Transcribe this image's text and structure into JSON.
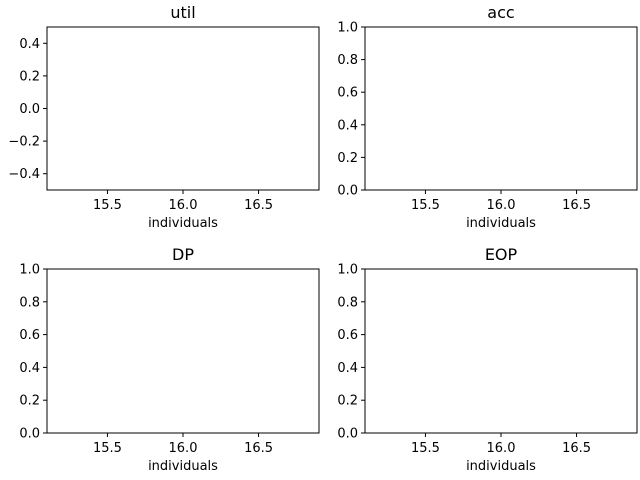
{
  "chart_data": [
    {
      "type": "line",
      "title": "util",
      "xlabel": "individuals",
      "ylabel": "",
      "xlim": [
        15.1,
        16.9
      ],
      "ylim": [
        -0.5,
        0.5
      ],
      "xticks": [
        15.5,
        16.0,
        16.5
      ],
      "xtick_labels": [
        "15.5",
        "16.0",
        "16.5"
      ],
      "yticks": [
        -0.4,
        -0.2,
        0.0,
        0.2,
        0.4
      ],
      "ytick_labels": [
        "−0.4",
        "−0.2",
        "0.0",
        "0.2",
        "0.4"
      ],
      "series": [],
      "grid": false
    },
    {
      "type": "line",
      "title": "acc",
      "xlabel": "individuals",
      "ylabel": "",
      "xlim": [
        15.1,
        16.9
      ],
      "ylim": [
        0.0,
        1.0
      ],
      "xticks": [
        15.5,
        16.0,
        16.5
      ],
      "xtick_labels": [
        "15.5",
        "16.0",
        "16.5"
      ],
      "yticks": [
        0.0,
        0.2,
        0.4,
        0.6,
        0.8,
        1.0
      ],
      "ytick_labels": [
        "0.0",
        "0.2",
        "0.4",
        "0.6",
        "0.8",
        "1.0"
      ],
      "series": [],
      "grid": false
    },
    {
      "type": "line",
      "title": "DP",
      "xlabel": "individuals",
      "ylabel": "",
      "xlim": [
        15.1,
        16.9
      ],
      "ylim": [
        0.0,
        1.0
      ],
      "xticks": [
        15.5,
        16.0,
        16.5
      ],
      "xtick_labels": [
        "15.5",
        "16.0",
        "16.5"
      ],
      "yticks": [
        0.0,
        0.2,
        0.4,
        0.6,
        0.8,
        1.0
      ],
      "ytick_labels": [
        "0.0",
        "0.2",
        "0.4",
        "0.6",
        "0.8",
        "1.0"
      ],
      "series": [],
      "grid": false
    },
    {
      "type": "line",
      "title": "EOP",
      "xlabel": "individuals",
      "ylabel": "",
      "xlim": [
        15.1,
        16.9
      ],
      "ylim": [
        0.0,
        1.0
      ],
      "xticks": [
        15.5,
        16.0,
        16.5
      ],
      "xtick_labels": [
        "15.5",
        "16.0",
        "16.5"
      ],
      "yticks": [
        0.0,
        0.2,
        0.4,
        0.6,
        0.8,
        1.0
      ],
      "ytick_labels": [
        "0.0",
        "0.2",
        "0.4",
        "0.6",
        "0.8",
        "1.0"
      ],
      "series": [],
      "grid": false
    }
  ]
}
